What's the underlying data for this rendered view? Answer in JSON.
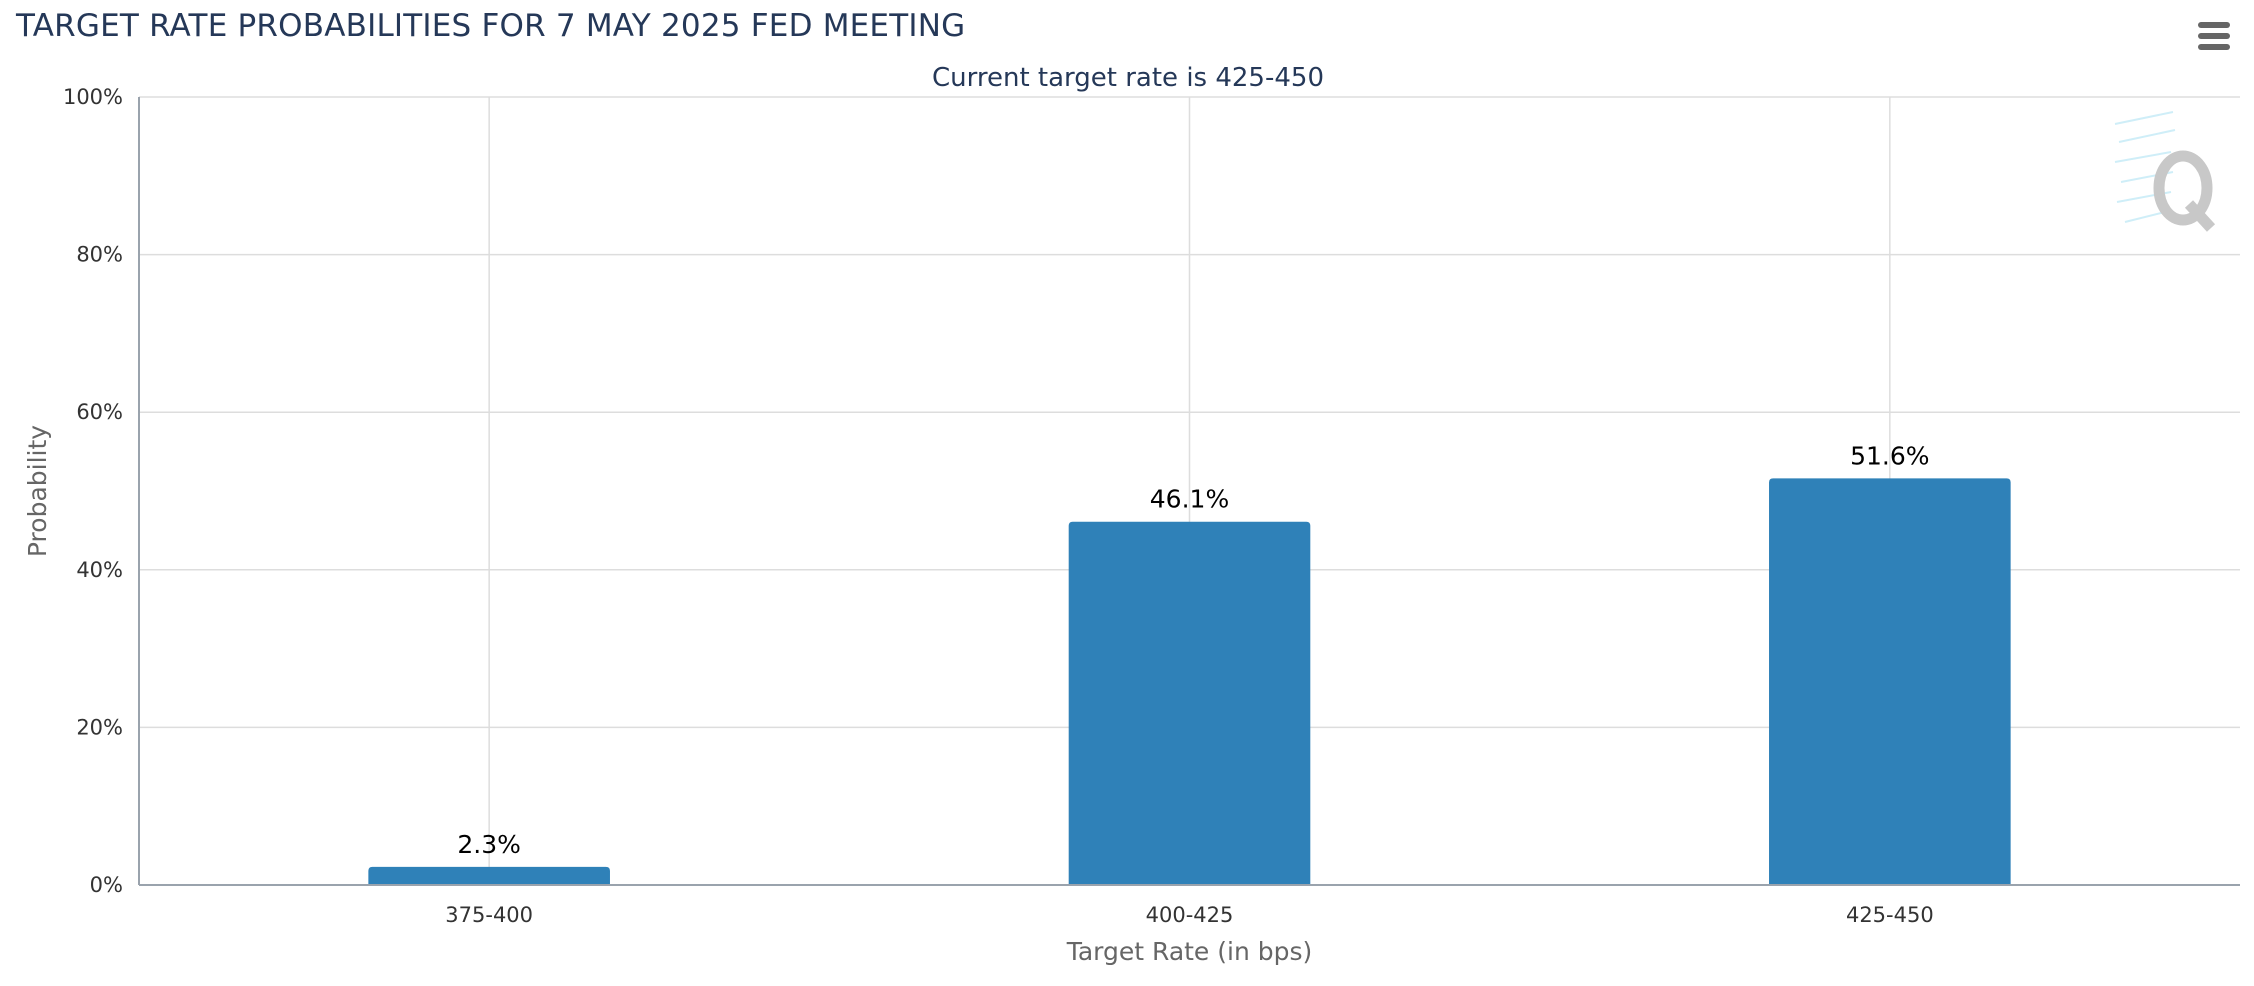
{
  "header": {
    "title": "TARGET RATE PROBABILITIES FOR 7 MAY 2025 FED MEETING",
    "menu_icon": "hamburger-menu-icon"
  },
  "watermark": {
    "icon": "q-logo-icon"
  },
  "chart_data": {
    "type": "bar",
    "subtitle": "Current target rate is 425-450",
    "categories": [
      "375-400",
      "400-425",
      "425-450"
    ],
    "values": [
      2.3,
      46.1,
      51.6
    ],
    "data_labels": [
      "2.3%",
      "46.1%",
      "51.6%"
    ],
    "xlabel": "Target Rate (in bps)",
    "ylabel": "Probability",
    "ylim": [
      0,
      100
    ],
    "yticks": [
      0,
      20,
      40,
      60,
      80,
      100
    ],
    "ytick_labels": [
      "0%",
      "20%",
      "40%",
      "60%",
      "80%",
      "100%"
    ],
    "grid": true,
    "bar_color": "#2f81b8"
  }
}
